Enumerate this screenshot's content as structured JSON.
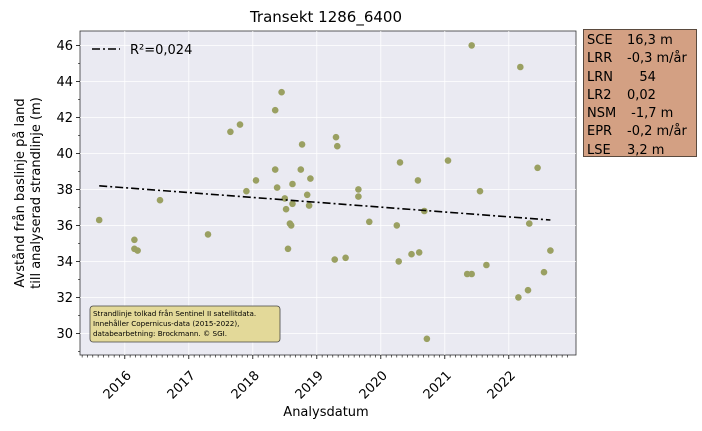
{
  "chart_data": {
    "type": "scatter",
    "title": "Transekt 1286_6400",
    "xlabel": "Analysdatum",
    "ylabel_lines": [
      "Avstånd från baslinje på land",
      "till analyserad strandlinje (m)"
    ],
    "ylim": [
      28.8,
      46.8
    ],
    "xlim": [
      2015.3,
      2023.05
    ],
    "yticks": [
      30,
      32,
      34,
      36,
      38,
      40,
      42,
      44,
      46
    ],
    "xticks": [
      {
        "value": 2016.0,
        "label": "2016"
      },
      {
        "value": 2017.0,
        "label": "2017"
      },
      {
        "value": 2018.0,
        "label": "2018"
      },
      {
        "value": 2019.0,
        "label": "2019"
      },
      {
        "value": 2020.0,
        "label": "2020"
      },
      {
        "value": 2021.0,
        "label": "2021"
      },
      {
        "value": 2022.0,
        "label": "2022"
      }
    ],
    "grid": true,
    "legend": {
      "label": "R²=0,024",
      "placement": "top-left"
    },
    "trend": {
      "x": [
        2015.6,
        2022.65
      ],
      "y": [
        38.2,
        36.3
      ],
      "color": "#000000"
    },
    "point_color": "#9aa062",
    "background": "#eaeaf2",
    "points": [
      {
        "x": 2015.6,
        "y": 36.3
      },
      {
        "x": 2016.15,
        "y": 35.2
      },
      {
        "x": 2016.15,
        "y": 34.7
      },
      {
        "x": 2016.2,
        "y": 34.6
      },
      {
        "x": 2016.55,
        "y": 37.4
      },
      {
        "x": 2017.3,
        "y": 35.5
      },
      {
        "x": 2017.65,
        "y": 41.2
      },
      {
        "x": 2017.8,
        "y": 41.6
      },
      {
        "x": 2017.9,
        "y": 37.9
      },
      {
        "x": 2018.05,
        "y": 38.5
      },
      {
        "x": 2018.35,
        "y": 42.4
      },
      {
        "x": 2018.35,
        "y": 39.1
      },
      {
        "x": 2018.38,
        "y": 38.1
      },
      {
        "x": 2018.45,
        "y": 43.4
      },
      {
        "x": 2018.5,
        "y": 37.5
      },
      {
        "x": 2018.52,
        "y": 36.9
      },
      {
        "x": 2018.55,
        "y": 34.7
      },
      {
        "x": 2018.58,
        "y": 36.1
      },
      {
        "x": 2018.6,
        "y": 36.0
      },
      {
        "x": 2018.62,
        "y": 37.2
      },
      {
        "x": 2018.62,
        "y": 38.3
      },
      {
        "x": 2018.75,
        "y": 39.1
      },
      {
        "x": 2018.77,
        "y": 40.5
      },
      {
        "x": 2018.85,
        "y": 37.7
      },
      {
        "x": 2018.88,
        "y": 37.1
      },
      {
        "x": 2018.9,
        "y": 38.6
      },
      {
        "x": 2019.28,
        "y": 34.1
      },
      {
        "x": 2019.3,
        "y": 40.9
      },
      {
        "x": 2019.32,
        "y": 40.4
      },
      {
        "x": 2019.45,
        "y": 34.2
      },
      {
        "x": 2019.65,
        "y": 38.0
      },
      {
        "x": 2019.65,
        "y": 37.6
      },
      {
        "x": 2019.82,
        "y": 36.2
      },
      {
        "x": 2020.25,
        "y": 36.0
      },
      {
        "x": 2020.3,
        "y": 39.5
      },
      {
        "x": 2020.28,
        "y": 34.0
      },
      {
        "x": 2020.48,
        "y": 34.4
      },
      {
        "x": 2020.58,
        "y": 38.5
      },
      {
        "x": 2020.6,
        "y": 34.5
      },
      {
        "x": 2020.68,
        "y": 36.8
      },
      {
        "x": 2020.72,
        "y": 29.7
      },
      {
        "x": 2021.05,
        "y": 39.6
      },
      {
        "x": 2021.35,
        "y": 33.3
      },
      {
        "x": 2021.42,
        "y": 33.3
      },
      {
        "x": 2021.42,
        "y": 46.0
      },
      {
        "x": 2021.55,
        "y": 37.9
      },
      {
        "x": 2021.65,
        "y": 33.8
      },
      {
        "x": 2022.15,
        "y": 32.0
      },
      {
        "x": 2022.18,
        "y": 44.8
      },
      {
        "x": 2022.3,
        "y": 32.4
      },
      {
        "x": 2022.32,
        "y": 36.1
      },
      {
        "x": 2022.45,
        "y": 39.2
      },
      {
        "x": 2022.55,
        "y": 33.4
      },
      {
        "x": 2022.65,
        "y": 34.6
      }
    ],
    "annotation_lines": [
      "Strandlinje tolkad från Sentinel II satellitdata.",
      "Innehåller Copernicus-data (2015-2022),",
      "databearbetning: Brockmann. © SGI."
    ],
    "annotation_color": "#e3d999"
  },
  "stats": [
    {
      "key": "SCE",
      "value": "16,3 m"
    },
    {
      "key": "LRR",
      "value": "-0,3 m/år"
    },
    {
      "key": "LRN",
      "value": "   54"
    },
    {
      "key": "LR2",
      "value": "0,02"
    },
    {
      "key": "NSM",
      "value": " -1,7 m"
    },
    {
      "key": "EPR",
      "value": "-0,2 m/år"
    },
    {
      "key": "LSE",
      "value": "3,2 m"
    }
  ]
}
